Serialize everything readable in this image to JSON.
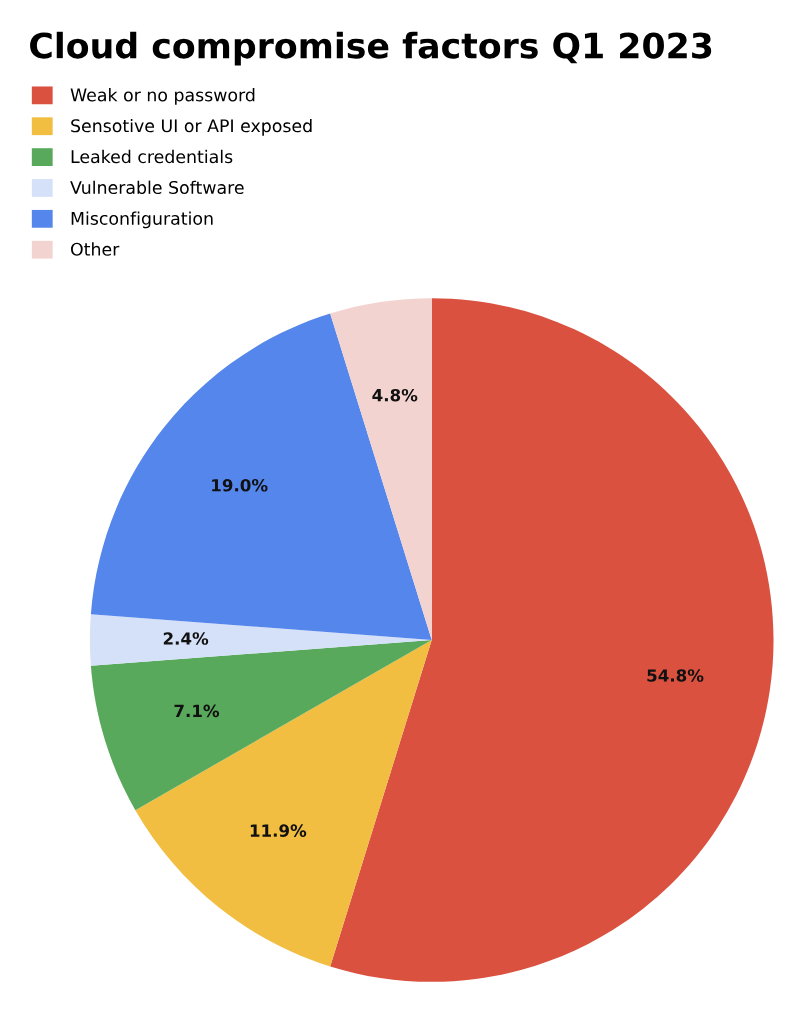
{
  "chart_data": {
    "type": "pie",
    "title": "Cloud compromise factors Q1 2023",
    "categories": [
      "Weak or no password",
      "Sensotive UI or API exposed",
      "Leaked credentials",
      "Vulnerable Software",
      "Misconfiguration",
      "Other"
    ],
    "values": [
      54.8,
      11.9,
      7.1,
      2.4,
      19.0,
      4.8
    ],
    "colors": [
      "#db5140",
      "#f1be42",
      "#59a95c",
      "#d4e1f8",
      "#5586ec",
      "#f3d3d0"
    ],
    "value_labels": [
      "54.8%",
      "11.9%",
      "7.1%",
      "2.4%",
      "19.0%",
      "4.8%"
    ],
    "legend": "top left"
  }
}
